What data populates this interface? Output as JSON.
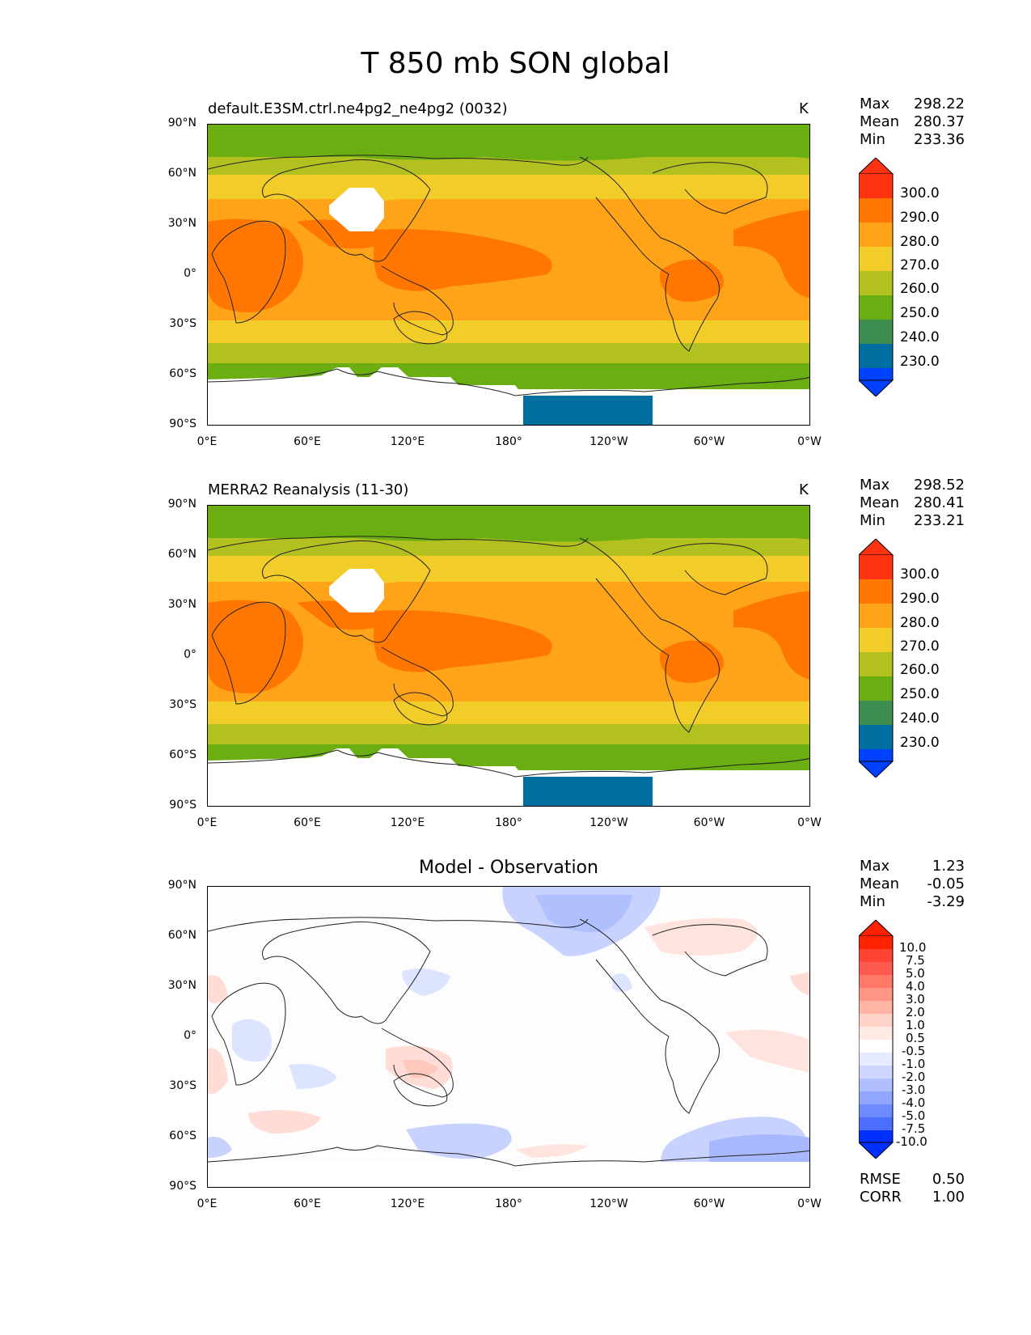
{
  "figure_title": "T 850 mb SON global",
  "axis": {
    "lat_ticks": [
      "90°N",
      "60°N",
      "30°N",
      "0°",
      "30°S",
      "60°S",
      "90°S"
    ],
    "lon_ticks": [
      "0°E",
      "60°E",
      "120°E",
      "180°",
      "120°W",
      "60°W",
      "0°W"
    ]
  },
  "panels": [
    {
      "title": "default.E3SM.ctrl.ne4pg2_ne4pg2 (0032)",
      "units": "K",
      "stats": {
        "max_label": "Max",
        "max": "298.22",
        "mean_label": "Mean",
        "mean": "280.37",
        "min_label": "Min",
        "min": "233.36"
      },
      "colorbar": {
        "labels": [
          "300.0",
          "290.0",
          "280.0",
          "270.0",
          "260.0",
          "250.0",
          "240.0",
          "230.0"
        ],
        "colors": [
          "#ff3311",
          "#ff7700",
          "#ffa418",
          "#f2cc28",
          "#b2c020",
          "#6aae12",
          "#3d8c50",
          "#006fa0",
          "#0040ff"
        ]
      }
    },
    {
      "title": "MERRA2 Reanalysis (11-30)",
      "units": "K",
      "stats": {
        "max_label": "Max",
        "max": "298.52",
        "mean_label": "Mean",
        "mean": "280.41",
        "min_label": "Min",
        "min": "233.21"
      },
      "colorbar": {
        "labels": [
          "300.0",
          "290.0",
          "280.0",
          "270.0",
          "260.0",
          "250.0",
          "240.0",
          "230.0"
        ],
        "colors": [
          "#ff3311",
          "#ff7700",
          "#ffa418",
          "#f2cc28",
          "#b2c020",
          "#6aae12",
          "#3d8c50",
          "#006fa0",
          "#0040ff"
        ]
      }
    },
    {
      "title": "Model - Observation",
      "units": "",
      "stats": {
        "max_label": "Max",
        "max": "1.23",
        "mean_label": "Mean",
        "mean": "-0.05",
        "min_label": "Min",
        "min": "-3.29"
      },
      "colorbar": {
        "labels": [
          "10.0",
          "7.5",
          "5.0",
          "4.0",
          "3.0",
          "2.0",
          "1.0",
          "0.5",
          "-0.5",
          "-1.0",
          "-2.0",
          "-3.0",
          "-4.0",
          "-5.0",
          "-7.5",
          "-10.0"
        ],
        "colors": [
          "#ff2200",
          "#ff4433",
          "#ff5a50",
          "#ff7868",
          "#ff9684",
          "#ffb4a4",
          "#ffd2c8",
          "#ffeae4",
          "#ffffff",
          "#e6ebff",
          "#ccd6ff",
          "#b0c0ff",
          "#90a6ff",
          "#6e8aff",
          "#4c6eff",
          "#2a50ff",
          "#0030ff"
        ]
      },
      "error_stats": {
        "rmse_label": "RMSE",
        "rmse": "0.50",
        "corr_label": "CORR",
        "corr": "1.00"
      }
    }
  ]
}
